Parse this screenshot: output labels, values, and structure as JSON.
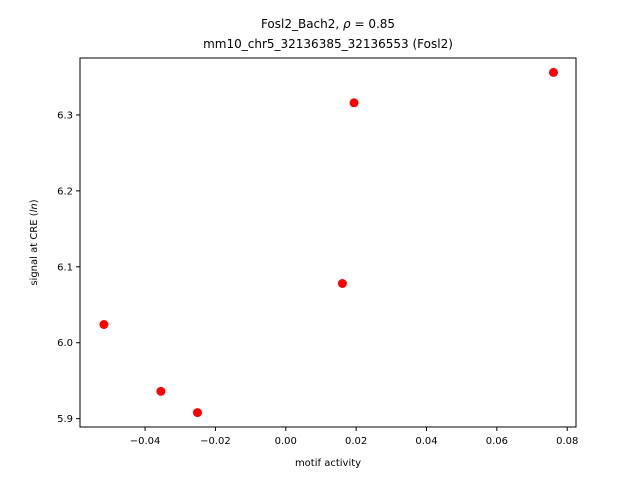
{
  "chart_data": {
    "type": "scatter",
    "title_line1": "Fosl2_Bach2, ",
    "title_rho": "ρ",
    "title_rho_value": " = 0.85",
    "title_line2": "mm10_chr5_32136385_32136553 (Fosl2)",
    "xlabel": "motif activity",
    "ylabel_prefix": "signal at CRE (",
    "ylabel_italic": "ln",
    "ylabel_suffix": ")",
    "xlim": [
      -0.0585,
      0.0825
    ],
    "ylim": [
      5.889,
      6.375
    ],
    "xticks": [
      -0.04,
      -0.02,
      0.0,
      0.02,
      0.04,
      0.06,
      0.08
    ],
    "xtick_labels": [
      "−0.04",
      "−0.02",
      "0.00",
      "0.02",
      "0.04",
      "0.06",
      "0.08"
    ],
    "yticks": [
      5.9,
      6.0,
      6.1,
      6.2,
      6.3
    ],
    "ytick_labels": [
      "5.9",
      "6.0",
      "6.1",
      "6.2",
      "6.3"
    ],
    "marker_color": "#ff0000",
    "points": [
      {
        "x": -0.0517,
        "y": 6.024
      },
      {
        "x": -0.0355,
        "y": 5.936
      },
      {
        "x": -0.0251,
        "y": 5.908
      },
      {
        "x": 0.0161,
        "y": 6.078
      },
      {
        "x": 0.0194,
        "y": 6.316
      },
      {
        "x": 0.0761,
        "y": 6.356
      }
    ]
  }
}
